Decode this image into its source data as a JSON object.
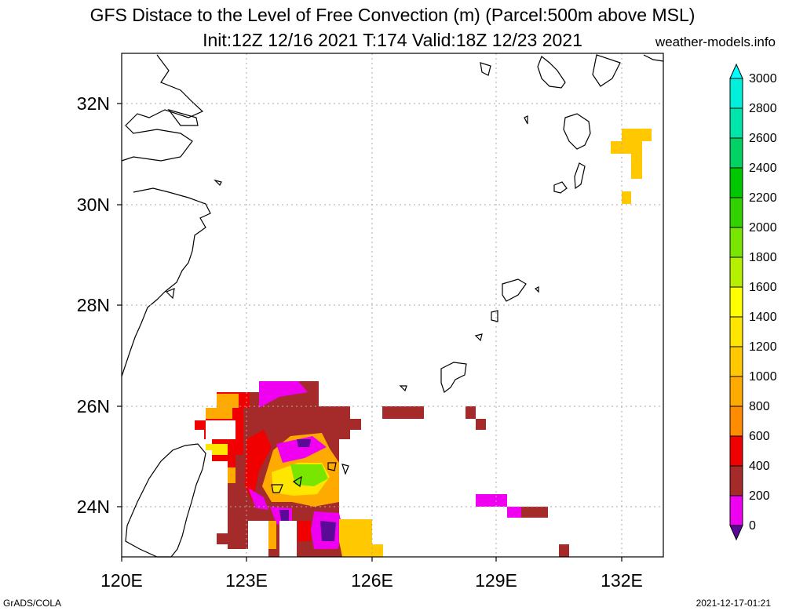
{
  "header": {
    "title_line1": "GFS Distace to the Level of Free Convection (m) (Parcel:500m above MSL)",
    "title_line2": "Init:12Z 12/16 2021 T:174 Valid:18Z 12/23 2021",
    "site": "weather-models.info"
  },
  "footer": {
    "left": "GrADS/COLA",
    "right": "2021-12-17-01:21"
  },
  "map": {
    "lon_min": 120,
    "lon_max": 133.0,
    "lat_min": 23.0,
    "lat_max": 33.0,
    "lon_ticks": [
      120,
      123,
      126,
      129,
      132
    ],
    "lat_ticks": [
      24,
      26,
      28,
      30,
      32
    ],
    "lon_labels": [
      "120E",
      "123E",
      "126E",
      "129E",
      "132E"
    ],
    "lat_labels": [
      "24N",
      "26N",
      "28N",
      "30N",
      "32N"
    ],
    "grid": true
  },
  "colorbar": {
    "levels": [
      "0",
      "200",
      "400",
      "600",
      "800",
      "1000",
      "1200",
      "1400",
      "1600",
      "1800",
      "2000",
      "2200",
      "2400",
      "2600",
      "2800",
      "3000"
    ],
    "colors": [
      "#5a0a96",
      "#f000f0",
      "#a52a2a",
      "#f00000",
      "#ff8c00",
      "#ffaa00",
      "#ffc800",
      "#ffe600",
      "#ffff00",
      "#b4f000",
      "#78e600",
      "#32d200",
      "#00c800",
      "#00d264",
      "#00e6aa",
      "#00f0dc",
      "#00ffff"
    ]
  }
}
